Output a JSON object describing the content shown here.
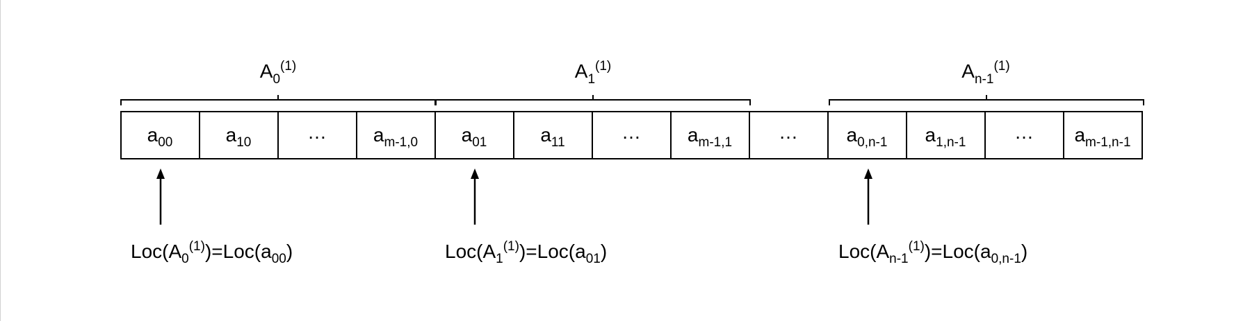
{
  "groups": [
    {
      "base": "A",
      "sub": "0",
      "sup": "(1)"
    },
    {
      "base": "A",
      "sub": "1",
      "sup": "(1)"
    },
    {
      "base": "A",
      "sub": "n-1",
      "sup": "(1)"
    }
  ],
  "cells": [
    {
      "base": "a",
      "sub": "00"
    },
    {
      "base": "a",
      "sub": "10"
    },
    {
      "base": "…",
      "sub": ""
    },
    {
      "base": "a",
      "sub": "m-1,0"
    },
    {
      "base": "a",
      "sub": "01"
    },
    {
      "base": "a",
      "sub": "11"
    },
    {
      "base": "…",
      "sub": ""
    },
    {
      "base": "a",
      "sub": "m-1,1"
    },
    {
      "base": "…",
      "sub": ""
    },
    {
      "base": "a",
      "sub": "0,n-1"
    },
    {
      "base": "a",
      "sub": "1,n-1"
    },
    {
      "base": "…",
      "sub": ""
    },
    {
      "base": "a",
      "sub": "m-1,n-1"
    }
  ],
  "locations": [
    {
      "pre": "Loc(A",
      "sub": "0",
      "sup": "(1)",
      "mid": ")=Loc(a",
      "sub2": "00",
      "post": ")"
    },
    {
      "pre": "Loc(A",
      "sub": "1",
      "sup": "(1)",
      "mid": ")=Loc(a",
      "sub2": "01",
      "post": ")"
    },
    {
      "pre": "Loc(A",
      "sub": "n-1",
      "sup": "(1)",
      "mid": ")=Loc(a",
      "sub2": "0,n-1",
      "post": ")"
    }
  ]
}
